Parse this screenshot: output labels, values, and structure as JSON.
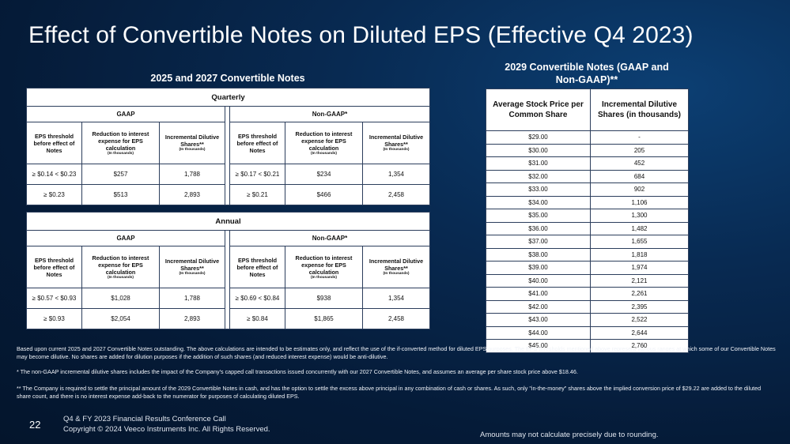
{
  "title": "Effect of Convertible Notes on Diluted EPS (Effective Q4 2023)",
  "left": {
    "heading": "2025 and 2027 Convertible Notes",
    "quarterly": {
      "caption": "Quarterly",
      "gaap_label": "GAAP",
      "nongaap_label": "Non-GAAP*",
      "col1": "EPS threshold before effect of Notes",
      "col2": "Reduction to interest expense for EPS calculation",
      "col2_sub": "(In thousands)",
      "col3": "Incremental Dilutive Shares**",
      "col3_sub": "(In thousands)",
      "gaap_rows": [
        [
          "≥  $0.14 < $0.23",
          "$257",
          "1,788"
        ],
        [
          "≥  $0.23",
          "$513",
          "2,893"
        ]
      ],
      "nongaap_rows": [
        [
          "≥  $0.17 < $0.21",
          "$234",
          "1,354"
        ],
        [
          "≥  $0.21",
          "$466",
          "2,458"
        ]
      ]
    },
    "annual": {
      "caption": "Annual",
      "gaap_label": "GAAP",
      "nongaap_label": "Non-GAAP*",
      "col1": "EPS threshold before effect of Notes",
      "col2": "Reduction to interest expense for EPS calculation",
      "col2_sub": "(In thousands)",
      "col3": "Incremental Dilutive Shares**",
      "col3_sub": "(In thousands)",
      "gaap_rows": [
        [
          "≥  $0.57 < $0.93",
          "$1,028",
          "1,788"
        ],
        [
          "≥  $0.93",
          "$2,054",
          "2,893"
        ]
      ],
      "nongaap_rows": [
        [
          "≥  $0.69 < $0.84",
          "$938",
          "1,354"
        ],
        [
          "≥  $0.84",
          "$1,865",
          "2,458"
        ]
      ]
    }
  },
  "right": {
    "heading_line1": "2029 Convertible Notes (GAAP and",
    "heading_line2": "Non-GAAP)**",
    "col1": "Average Stock Price per Common Share",
    "col2": "Incremental Dilutive Shares (in thousands)",
    "rows": [
      [
        "$29.00",
        "-"
      ],
      [
        "$30.00",
        "205"
      ],
      [
        "$31.00",
        "452"
      ],
      [
        "$32.00",
        "684"
      ],
      [
        "$33.00",
        "902"
      ],
      [
        "$34.00",
        "1,106"
      ],
      [
        "$35.00",
        "1,300"
      ],
      [
        "$36.00",
        "1,482"
      ],
      [
        "$37.00",
        "1,655"
      ],
      [
        "$38.00",
        "1,818"
      ],
      [
        "$39.00",
        "1,974"
      ],
      [
        "$40.00",
        "2,121"
      ],
      [
        "$41.00",
        "2,261"
      ],
      [
        "$42.00",
        "2,395"
      ],
      [
        "$43.00",
        "2,522"
      ],
      [
        "$44.00",
        "2,644"
      ],
      [
        "$45.00",
        "2,760"
      ]
    ]
  },
  "footnotes": {
    "basis": "Based upon current 2025 and 2027 Convertible Notes outstanding. The above calculations are intended to be estimates only, and reflect the use of the if-converted method for diluted EPS purposes. The EPS thresholds mentioned above represent various ranges at which some of our Convertible Notes may become dilutive. No shares are added for dilution purposes if the addition of such shares (and reduced interest expense) would be anti-dilutive.",
    "star": "* The non-GAAP incremental dilutive shares includes the impact of the Company's capped call transactions issued concurrently with our 2027 Convertible Notes, and assumes an average per share stock price above $18.46.",
    "dstar": "** The Company is required to settle the principal amount of the 2029 Convertible Notes in cash, and has the option to settle the excess above principal in any combination of cash or shares. As such, only \"in-the-money\" shares above the implied conversion price of $29.22 are added to the diluted share count, and there is no interest expense add-back to the numerator for purposes of calculating diluted EPS."
  },
  "footer": {
    "page_number": "22",
    "line1": "Q4 & FY 2023 Financial Results Conference Call",
    "line2": "Copyright © 2024 Veeco Instruments Inc. All Rights Reserved.",
    "rounding": "Amounts may not calculate precisely due to rounding."
  }
}
